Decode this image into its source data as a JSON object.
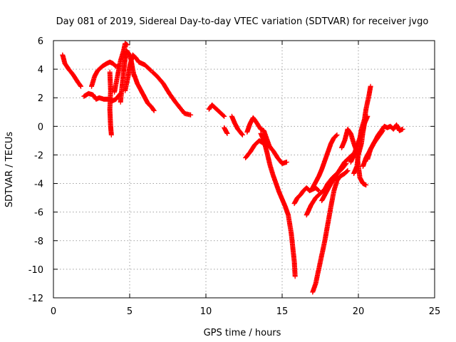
{
  "chart_data": {
    "type": "scatter",
    "title": "Day 081 of 2019, Sidereal Day-to-day VTEC variation (SDTVAR) for receiver jvgo",
    "xlabel": "GPS time / hours",
    "ylabel": "SDTVAR / TECUs",
    "xlim": [
      0,
      25
    ],
    "ylim": [
      -12,
      6
    ],
    "xticks": [
      "0",
      "5",
      "10",
      "15",
      "20",
      "25"
    ],
    "yticks": [
      "-12",
      "-10",
      "-8",
      "-6",
      "-4",
      "-2",
      "0",
      "2",
      "4",
      "6"
    ],
    "grid": true,
    "marker": "+",
    "color": "#ff0000",
    "series": [
      {
        "values": [
          [
            0.6,
            5.0
          ],
          [
            0.75,
            4.4
          ],
          [
            1.0,
            4.0
          ],
          [
            1.3,
            3.6
          ],
          [
            1.6,
            3.1
          ],
          [
            1.8,
            2.8
          ]
        ]
      },
      {
        "values": [
          [
            2.0,
            2.1
          ],
          [
            2.3,
            2.3
          ],
          [
            2.6,
            2.2
          ],
          [
            2.8,
            1.9
          ],
          [
            3.0,
            2.0
          ],
          [
            3.3,
            1.9
          ],
          [
            3.6,
            1.9
          ],
          [
            3.9,
            1.8
          ],
          [
            4.1,
            1.9
          ],
          [
            4.4,
            2.3
          ]
        ]
      },
      {
        "values": [
          [
            2.5,
            2.8
          ],
          [
            2.7,
            3.5
          ],
          [
            2.9,
            3.9
          ],
          [
            3.2,
            4.2
          ],
          [
            3.5,
            4.4
          ],
          [
            3.7,
            4.5
          ],
          [
            3.9,
            4.4
          ],
          [
            4.1,
            4.2
          ],
          [
            4.3,
            4.2
          ]
        ]
      },
      {
        "values": [
          [
            3.7,
            3.8
          ],
          [
            3.75,
            2.5
          ],
          [
            3.7,
            1.2
          ],
          [
            3.75,
            0.0
          ],
          [
            3.8,
            -0.6
          ]
        ]
      },
      {
        "values": [
          [
            4.0,
            2.4
          ],
          [
            4.2,
            3.5
          ],
          [
            4.4,
            4.6
          ],
          [
            4.6,
            5.3
          ],
          [
            4.7,
            5.8
          ],
          [
            4.85,
            5.7
          ]
        ]
      },
      {
        "values": [
          [
            4.4,
            1.7
          ],
          [
            4.5,
            2.8
          ],
          [
            4.6,
            3.8
          ],
          [
            4.7,
            4.7
          ],
          [
            4.8,
            5.3
          ],
          [
            5.0,
            5.0
          ],
          [
            5.1,
            4.6
          ],
          [
            5.2,
            4.0
          ],
          [
            5.3,
            3.5
          ]
        ]
      },
      {
        "values": [
          [
            4.7,
            2.5
          ],
          [
            4.9,
            3.5
          ],
          [
            5.0,
            4.2
          ],
          [
            5.2,
            5.0
          ],
          [
            5.4,
            4.8
          ],
          [
            5.6,
            4.5
          ],
          [
            5.8,
            4.4
          ],
          [
            6.0,
            4.3
          ],
          [
            6.2,
            4.1
          ],
          [
            6.4,
            3.9
          ]
        ]
      },
      {
        "values": [
          [
            5.3,
            3.6
          ],
          [
            5.5,
            3.0
          ],
          [
            5.8,
            2.4
          ],
          [
            6.0,
            2.0
          ],
          [
            6.2,
            1.6
          ],
          [
            6.4,
            1.4
          ],
          [
            6.6,
            1.1
          ]
        ]
      },
      {
        "values": [
          [
            6.5,
            3.8
          ],
          [
            6.8,
            3.5
          ],
          [
            7.2,
            3.0
          ],
          [
            7.6,
            2.3
          ],
          [
            8.0,
            1.7
          ],
          [
            8.3,
            1.3
          ],
          [
            8.6,
            0.9
          ],
          [
            9.0,
            0.8
          ]
        ]
      },
      {
        "values": [
          [
            10.2,
            1.2
          ],
          [
            10.4,
            1.5
          ],
          [
            10.6,
            1.3
          ],
          [
            10.9,
            1.0
          ],
          [
            11.2,
            0.7
          ]
        ]
      },
      {
        "values": [
          [
            11.2,
            -0.1
          ],
          [
            11.4,
            -0.5
          ]
        ]
      },
      {
        "values": [
          [
            11.7,
            0.7
          ],
          [
            11.9,
            0.2
          ],
          [
            12.1,
            -0.2
          ],
          [
            12.4,
            -0.6
          ]
        ]
      },
      {
        "values": [
          [
            12.7,
            -0.4
          ],
          [
            12.9,
            0.2
          ],
          [
            13.1,
            0.6
          ],
          [
            13.3,
            0.3
          ],
          [
            13.6,
            -0.2
          ],
          [
            13.8,
            -0.3
          ],
          [
            14.0,
            -0.9
          ],
          [
            14.2,
            -1.5
          ]
        ]
      },
      {
        "values": [
          [
            12.6,
            -2.2
          ],
          [
            12.9,
            -1.8
          ],
          [
            13.2,
            -1.3
          ],
          [
            13.5,
            -1.0
          ],
          [
            13.8,
            -1.2
          ],
          [
            14.1,
            -1.3
          ],
          [
            14.4,
            -1.7
          ],
          [
            14.7,
            -2.2
          ],
          [
            15.0,
            -2.6
          ],
          [
            15.3,
            -2.5
          ]
        ]
      },
      {
        "values": [
          [
            13.6,
            -0.5
          ],
          [
            13.8,
            -1.0
          ],
          [
            14.0,
            -1.8
          ],
          [
            14.2,
            -2.7
          ],
          [
            14.4,
            -3.4
          ],
          [
            14.6,
            -4.0
          ],
          [
            14.8,
            -4.6
          ],
          [
            15.0,
            -5.1
          ],
          [
            15.2,
            -5.6
          ],
          [
            15.4,
            -6.2
          ],
          [
            15.6,
            -7.5
          ],
          [
            15.7,
            -8.5
          ],
          [
            15.8,
            -9.5
          ],
          [
            15.85,
            -10.5
          ]
        ]
      },
      {
        "values": [
          [
            15.8,
            -5.4
          ],
          [
            16.0,
            -5.0
          ],
          [
            16.2,
            -4.8
          ],
          [
            16.4,
            -4.5
          ],
          [
            16.6,
            -4.3
          ],
          [
            16.8,
            -4.5
          ],
          [
            17.0,
            -4.4
          ],
          [
            17.2,
            -4.3
          ],
          [
            17.4,
            -4.5
          ]
        ]
      },
      {
        "values": [
          [
            16.6,
            -6.2
          ],
          [
            16.9,
            -5.5
          ],
          [
            17.2,
            -5.0
          ],
          [
            17.5,
            -4.7
          ],
          [
            17.8,
            -4.4
          ],
          [
            18.0,
            -4.0
          ],
          [
            18.3,
            -3.6
          ],
          [
            18.6,
            -3.3
          ],
          [
            18.9,
            -3.0
          ],
          [
            19.2,
            -2.6
          ]
        ]
      },
      {
        "values": [
          [
            17.0,
            -11.6
          ],
          [
            17.2,
            -11.0
          ],
          [
            17.4,
            -10.0
          ],
          [
            17.6,
            -9.0
          ],
          [
            17.8,
            -8.0
          ],
          [
            18.0,
            -6.8
          ],
          [
            18.2,
            -5.6
          ],
          [
            18.4,
            -4.5
          ],
          [
            18.6,
            -3.8
          ],
          [
            18.8,
            -3.5
          ],
          [
            19.1,
            -3.3
          ],
          [
            19.3,
            -3.1
          ]
        ]
      },
      {
        "values": [
          [
            17.6,
            -5.2
          ],
          [
            17.9,
            -4.6
          ],
          [
            18.2,
            -4.0
          ],
          [
            18.5,
            -3.5
          ],
          [
            18.8,
            -3.0
          ],
          [
            19.1,
            -2.5
          ],
          [
            19.4,
            -2.2
          ],
          [
            19.6,
            -2.0
          ]
        ]
      },
      {
        "values": [
          [
            17.0,
            -4.3
          ],
          [
            17.2,
            -3.9
          ],
          [
            17.4,
            -3.5
          ],
          [
            17.6,
            -3.0
          ],
          [
            17.8,
            -2.4
          ],
          [
            18.0,
            -1.8
          ],
          [
            18.2,
            -1.2
          ],
          [
            18.4,
            -0.8
          ],
          [
            18.6,
            -0.6
          ]
        ]
      },
      {
        "values": [
          [
            18.9,
            -1.5
          ],
          [
            19.1,
            -1.0
          ],
          [
            19.3,
            -0.2
          ],
          [
            19.5,
            -0.5
          ],
          [
            19.7,
            -1.2
          ],
          [
            19.9,
            -1.8
          ],
          [
            20.0,
            -2.8
          ],
          [
            20.1,
            -3.6
          ],
          [
            20.3,
            -4.0
          ],
          [
            20.5,
            -4.1
          ]
        ]
      },
      {
        "values": [
          [
            19.5,
            -2.5
          ],
          [
            19.7,
            -2.0
          ],
          [
            19.9,
            -1.4
          ],
          [
            20.1,
            -0.8
          ],
          [
            20.2,
            -0.2
          ],
          [
            20.4,
            0.5
          ],
          [
            20.5,
            1.2
          ],
          [
            20.7,
            2.2
          ],
          [
            20.8,
            2.8
          ]
        ]
      },
      {
        "values": [
          [
            19.7,
            -3.3
          ],
          [
            19.9,
            -2.8
          ],
          [
            20.0,
            -2.0
          ],
          [
            20.2,
            -1.2
          ],
          [
            20.3,
            -0.4
          ],
          [
            20.4,
            0.2
          ],
          [
            20.6,
            0.7
          ]
        ]
      },
      {
        "values": [
          [
            20.3,
            -2.8
          ],
          [
            20.5,
            -2.2
          ],
          [
            20.7,
            -1.8
          ],
          [
            20.9,
            -1.4
          ],
          [
            21.1,
            -1.0
          ],
          [
            21.3,
            -0.6
          ],
          [
            21.5,
            -0.3
          ],
          [
            21.7,
            0.0
          ],
          [
            21.9,
            -0.1
          ],
          [
            22.1,
            0.0
          ],
          [
            22.3,
            -0.2
          ],
          [
            22.5,
            0.1
          ],
          [
            22.7,
            -0.3
          ],
          [
            22.9,
            -0.2
          ]
        ]
      },
      {
        "values": [
          [
            20.6,
            -2.3
          ],
          [
            20.8,
            -1.6
          ],
          [
            21.0,
            -1.2
          ],
          [
            21.2,
            -0.9
          ],
          [
            21.4,
            -0.6
          ],
          [
            21.6,
            -0.3
          ]
        ]
      }
    ]
  }
}
